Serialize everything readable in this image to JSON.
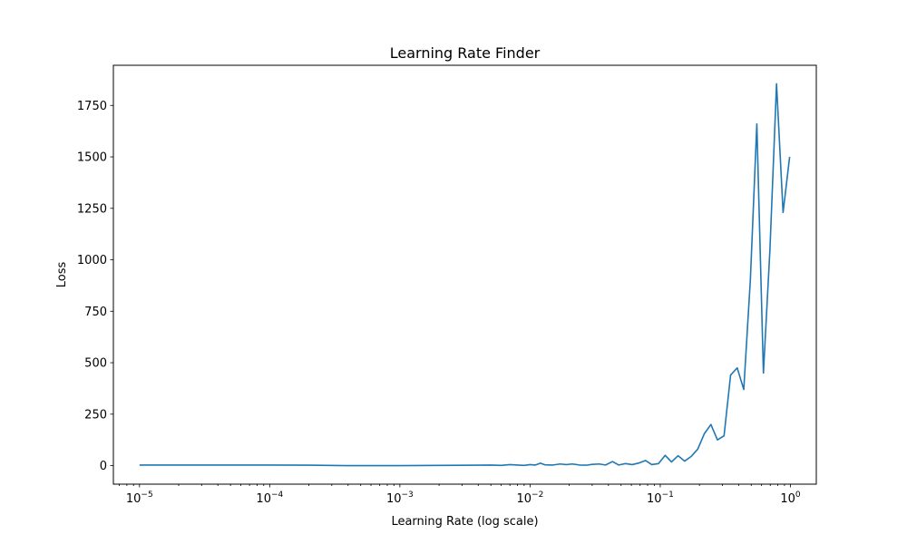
{
  "chart_data": {
    "type": "line",
    "title": "Learning Rate Finder",
    "xlabel": "Learning Rate (log scale)",
    "ylabel": "Loss",
    "x_scale": "log",
    "xlim": [
      6.3e-06,
      1.58
    ],
    "ylim": [
      -90,
      1945
    ],
    "x_ticks": [
      {
        "value": 1e-05,
        "base": "10",
        "exp": "−5"
      },
      {
        "value": 0.0001,
        "base": "10",
        "exp": "−4"
      },
      {
        "value": 0.001,
        "base": "10",
        "exp": "−3"
      },
      {
        "value": 0.01,
        "base": "10",
        "exp": "−2"
      },
      {
        "value": 0.1,
        "base": "10",
        "exp": "−1"
      },
      {
        "value": 1,
        "base": "10",
        "exp": "0"
      }
    ],
    "y_ticks": [
      0,
      250,
      500,
      750,
      1000,
      1250,
      1500,
      1750
    ],
    "grid": false,
    "series": [
      {
        "color": "#1f77b4",
        "x": [
          1e-05,
          0.0001,
          0.0002,
          0.0004,
          0.001,
          0.002,
          0.004,
          0.005,
          0.006,
          0.007,
          0.008,
          0.009,
          0.01,
          0.011,
          0.012,
          0.013,
          0.015,
          0.017,
          0.019,
          0.021,
          0.024,
          0.027,
          0.03,
          0.034,
          0.038,
          0.043,
          0.048,
          0.054,
          0.061,
          0.068,
          0.077,
          0.086,
          0.097,
          0.109,
          0.122,
          0.137,
          0.154,
          0.173,
          0.194,
          0.218,
          0.245,
          0.275,
          0.309,
          0.347,
          0.39,
          0.438,
          0.492,
          0.552,
          0.62,
          0.696,
          0.782,
          0.878,
          0.986
        ],
        "y": [
          3,
          3,
          2,
          0,
          0,
          1,
          2,
          3,
          1,
          5,
          3,
          1,
          5,
          3,
          12,
          4,
          3,
          8,
          5,
          8,
          3,
          2,
          6,
          8,
          3,
          20,
          3,
          10,
          5,
          12,
          25,
          5,
          10,
          50,
          18,
          48,
          22,
          45,
          80,
          155,
          200,
          125,
          145,
          440,
          475,
          370,
          900,
          1660,
          450,
          1050,
          1855,
          1230,
          1500
        ]
      }
    ]
  }
}
